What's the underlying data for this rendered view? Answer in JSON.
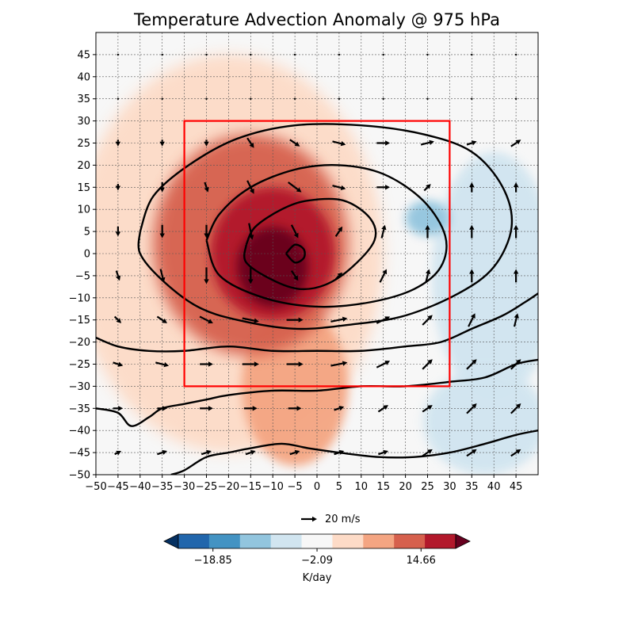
{
  "chart_data": {
    "type": "heatmap",
    "title": "Temperature Advection Anomaly @ 975 hPa",
    "xlabel": "",
    "ylabel": "",
    "xlim": [
      -50,
      50
    ],
    "ylim": [
      -50,
      50
    ],
    "x_ticks": [
      -50,
      -45,
      -40,
      -35,
      -30,
      -25,
      -20,
      -15,
      -10,
      -5,
      0,
      5,
      10,
      15,
      20,
      25,
      30,
      35,
      40,
      45
    ],
    "y_ticks": [
      -50,
      -45,
      -40,
      -35,
      -30,
      -25,
      -20,
      -15,
      -10,
      -5,
      0,
      5,
      10,
      15,
      20,
      25,
      30,
      35,
      40,
      45
    ],
    "grid": true,
    "colorbar": {
      "label": "K/day",
      "tick_values": [
        -18.85,
        -2.09,
        14.66
      ],
      "tick_labels": [
        "−18.85",
        "−2.09",
        "14.66"
      ],
      "level_colors": [
        "#053061",
        "#2166ac",
        "#4393c3",
        "#92c5de",
        "#d1e5f0",
        "#f7f7f7",
        "#fddbc7",
        "#f4a582",
        "#d6604d",
        "#b2182b",
        "#67001f"
      ],
      "extend": "both"
    },
    "wind_reference": {
      "value": 20,
      "label": "20 m/s"
    },
    "box": {
      "x": [
        -30,
        30
      ],
      "y": [
        -30,
        30
      ],
      "color": "#ff0000"
    },
    "shading_features": [
      {
        "name": "warm advection core",
        "x": -10,
        "y": -3,
        "rx": 8,
        "ry": 9,
        "level": 10
      },
      {
        "name": "warm advection ring",
        "x": -10,
        "y": 0,
        "rx": 14,
        "ry": 15,
        "level": 9
      },
      {
        "name": "warm region west",
        "x": -15,
        "y": 2,
        "rx": 22,
        "ry": 25,
        "level": 8
      },
      {
        "name": "warm tail south",
        "x": -5,
        "y": -30,
        "rx": 12,
        "ry": 18,
        "level": 7
      },
      {
        "name": "warm broad",
        "x": -20,
        "y": 0,
        "rx": 35,
        "ry": 45,
        "level": 6
      },
      {
        "name": "cold advection east",
        "x": 40,
        "y": -5,
        "rx": 14,
        "ry": 28,
        "level": 4
      },
      {
        "name": "cold advection southeast",
        "x": 38,
        "y": -38,
        "rx": 14,
        "ry": 12,
        "level": 4
      },
      {
        "name": "cold pocket",
        "x": 25,
        "y": 8,
        "rx": 5,
        "ry": 4,
        "level": 3
      }
    ],
    "contours": [
      {
        "name": "contour-1",
        "points": [
          [
            -7,
            0
          ],
          [
            -5,
            2
          ],
          [
            -3,
            1
          ],
          [
            -3,
            -1
          ],
          [
            -5,
            -2
          ],
          [
            -7,
            0
          ]
        ]
      },
      {
        "name": "contour-2",
        "points": [
          [
            -16,
            2
          ],
          [
            -14,
            6
          ],
          [
            -8,
            10
          ],
          [
            -2,
            12
          ],
          [
            6,
            12
          ],
          [
            12,
            8
          ],
          [
            13,
            3
          ],
          [
            8,
            -3
          ],
          [
            2,
            -7
          ],
          [
            -4,
            -8
          ],
          [
            -10,
            -6
          ],
          [
            -16,
            -2
          ],
          [
            -16,
            2
          ]
        ]
      },
      {
        "name": "contour-3",
        "points": [
          [
            -25,
            3
          ],
          [
            -22,
            9
          ],
          [
            -15,
            15
          ],
          [
            -5,
            19
          ],
          [
            5,
            20
          ],
          [
            15,
            18
          ],
          [
            24,
            12
          ],
          [
            29,
            4
          ],
          [
            28,
            -3
          ],
          [
            22,
            -8
          ],
          [
            12,
            -11
          ],
          [
            0,
            -12
          ],
          [
            -12,
            -10
          ],
          [
            -22,
            -5
          ],
          [
            -25,
            3
          ]
        ]
      },
      {
        "name": "contour-4",
        "points": [
          [
            -40,
            5
          ],
          [
            -37,
            13
          ],
          [
            -29,
            20
          ],
          [
            -18,
            26
          ],
          [
            -5,
            29
          ],
          [
            10,
            29
          ],
          [
            24,
            27
          ],
          [
            35,
            23
          ],
          [
            42,
            15
          ],
          [
            44,
            6
          ],
          [
            40,
            -3
          ],
          [
            32,
            -9
          ],
          [
            20,
            -14
          ],
          [
            8,
            -16
          ],
          [
            -5,
            -17
          ],
          [
            -18,
            -15
          ],
          [
            -27,
            -12
          ],
          [
            -35,
            -6
          ],
          [
            -40,
            0
          ],
          [
            -40,
            5
          ]
        ]
      },
      {
        "name": "contour-5",
        "points": [
          [
            -50,
            -19
          ],
          [
            -45,
            -21
          ],
          [
            -38,
            -22
          ],
          [
            -30,
            -22
          ],
          [
            -20,
            -21
          ],
          [
            -10,
            -22
          ],
          [
            0,
            -22
          ],
          [
            10,
            -22
          ],
          [
            20,
            -21
          ],
          [
            28,
            -20
          ],
          [
            35,
            -17
          ],
          [
            42,
            -14
          ],
          [
            47,
            -11
          ],
          [
            50,
            -9
          ]
        ]
      },
      {
        "name": "contour-6",
        "points": [
          [
            -50,
            -35
          ],
          [
            -45,
            -36
          ],
          [
            -42,
            -39
          ],
          [
            -38,
            -37
          ],
          [
            -35,
            -35
          ],
          [
            -30,
            -34
          ],
          [
            -25,
            -33
          ],
          [
            -20,
            -32
          ],
          [
            -10,
            -31
          ],
          [
            0,
            -31
          ],
          [
            10,
            -30
          ],
          [
            20,
            -30
          ],
          [
            30,
            -29
          ],
          [
            38,
            -28
          ],
          [
            45,
            -25
          ],
          [
            50,
            -24
          ]
        ]
      },
      {
        "name": "contour-7",
        "points": [
          [
            -33,
            -50
          ],
          [
            -30,
            -49
          ],
          [
            -25,
            -46
          ],
          [
            -20,
            -45
          ],
          [
            -15,
            -44
          ],
          [
            -8,
            -43
          ],
          [
            -2,
            -44
          ],
          [
            5,
            -45
          ],
          [
            14,
            -46
          ],
          [
            22,
            -46
          ],
          [
            30,
            -45
          ],
          [
            38,
            -43
          ],
          [
            45,
            -41
          ],
          [
            50,
            -40
          ]
        ]
      }
    ],
    "wind_field": [
      {
        "x": -45,
        "y": 25,
        "u": 0,
        "v": -2
      },
      {
        "x": -35,
        "y": 25,
        "u": 0,
        "v": -2
      },
      {
        "x": -25,
        "y": 25,
        "u": 0,
        "v": -2
      },
      {
        "x": -15,
        "y": 25,
        "u": 2,
        "v": -3
      },
      {
        "x": -5,
        "y": 25,
        "u": 3,
        "v": -2
      },
      {
        "x": 5,
        "y": 25,
        "u": 4,
        "v": -1
      },
      {
        "x": 15,
        "y": 25,
        "u": 4,
        "v": 0
      },
      {
        "x": 25,
        "y": 25,
        "u": 4,
        "v": 1
      },
      {
        "x": 35,
        "y": 25,
        "u": 3,
        "v": 1
      },
      {
        "x": 45,
        "y": 25,
        "u": 3,
        "v": 2
      },
      {
        "x": -45,
        "y": 15,
        "u": 0,
        "v": -2
      },
      {
        "x": -35,
        "y": 15,
        "u": 0,
        "v": -3
      },
      {
        "x": -25,
        "y": 15,
        "u": 1,
        "v": -3
      },
      {
        "x": -15,
        "y": 15,
        "u": 2,
        "v": -4
      },
      {
        "x": -5,
        "y": 15,
        "u": 4,
        "v": -3
      },
      {
        "x": 5,
        "y": 15,
        "u": 4,
        "v": -1
      },
      {
        "x": 15,
        "y": 15,
        "u": 4,
        "v": 0
      },
      {
        "x": 25,
        "y": 15,
        "u": 2,
        "v": 2
      },
      {
        "x": 35,
        "y": 15,
        "u": 0,
        "v": 3
      },
      {
        "x": 45,
        "y": 15,
        "u": 0,
        "v": 3
      },
      {
        "x": -45,
        "y": 5,
        "u": 0,
        "v": -3
      },
      {
        "x": -35,
        "y": 5,
        "u": 0,
        "v": -4
      },
      {
        "x": -25,
        "y": 5,
        "u": 0,
        "v": -4
      },
      {
        "x": -15,
        "y": 5,
        "u": 1,
        "v": -5
      },
      {
        "x": -5,
        "y": 5,
        "u": 2,
        "v": -4
      },
      {
        "x": 5,
        "y": 5,
        "u": 2,
        "v": 3
      },
      {
        "x": 15,
        "y": 5,
        "u": 1,
        "v": 4
      },
      {
        "x": 25,
        "y": 5,
        "u": 0,
        "v": 4
      },
      {
        "x": 35,
        "y": 5,
        "u": 0,
        "v": 4
      },
      {
        "x": 45,
        "y": 5,
        "u": 0,
        "v": 4
      },
      {
        "x": -45,
        "y": -5,
        "u": 1,
        "v": -3
      },
      {
        "x": -35,
        "y": -5,
        "u": 1,
        "v": -4
      },
      {
        "x": -25,
        "y": -5,
        "u": 0,
        "v": -5
      },
      {
        "x": -15,
        "y": -5,
        "u": 0,
        "v": -5
      },
      {
        "x": -5,
        "y": -5,
        "u": 2,
        "v": -3
      },
      {
        "x": 5,
        "y": -5,
        "u": 2,
        "v": 2
      },
      {
        "x": 15,
        "y": -5,
        "u": 2,
        "v": 4
      },
      {
        "x": 25,
        "y": -5,
        "u": 1,
        "v": 4
      },
      {
        "x": 35,
        "y": -5,
        "u": 0,
        "v": 4
      },
      {
        "x": 45,
        "y": -5,
        "u": 0,
        "v": 4
      },
      {
        "x": -45,
        "y": -15,
        "u": 2,
        "v": -2
      },
      {
        "x": -35,
        "y": -15,
        "u": 3,
        "v": -2
      },
      {
        "x": -25,
        "y": -15,
        "u": 4,
        "v": -2
      },
      {
        "x": -15,
        "y": -15,
        "u": 5,
        "v": -1
      },
      {
        "x": -5,
        "y": -15,
        "u": 5,
        "v": 0
      },
      {
        "x": 5,
        "y": -15,
        "u": 5,
        "v": 1
      },
      {
        "x": 15,
        "y": -15,
        "u": 4,
        "v": 2
      },
      {
        "x": 25,
        "y": -15,
        "u": 3,
        "v": 3
      },
      {
        "x": 35,
        "y": -15,
        "u": 2,
        "v": 4
      },
      {
        "x": 45,
        "y": -15,
        "u": 1,
        "v": 4
      },
      {
        "x": -45,
        "y": -25,
        "u": 3,
        "v": -1
      },
      {
        "x": -35,
        "y": -25,
        "u": 4,
        "v": -1
      },
      {
        "x": -25,
        "y": -25,
        "u": 4,
        "v": 0
      },
      {
        "x": -15,
        "y": -25,
        "u": 5,
        "v": 0
      },
      {
        "x": -5,
        "y": -25,
        "u": 5,
        "v": 0
      },
      {
        "x": 5,
        "y": -25,
        "u": 5,
        "v": 1
      },
      {
        "x": 15,
        "y": -25,
        "u": 4,
        "v": 2
      },
      {
        "x": 25,
        "y": -25,
        "u": 3,
        "v": 3
      },
      {
        "x": 35,
        "y": -25,
        "u": 3,
        "v": 3
      },
      {
        "x": 45,
        "y": -25,
        "u": 3,
        "v": 3
      },
      {
        "x": -45,
        "y": -35,
        "u": 3,
        "v": 0
      },
      {
        "x": -35,
        "y": -35,
        "u": 3,
        "v": 0
      },
      {
        "x": -25,
        "y": -35,
        "u": 4,
        "v": 0
      },
      {
        "x": -15,
        "y": -35,
        "u": 4,
        "v": 0
      },
      {
        "x": -5,
        "y": -35,
        "u": 4,
        "v": 0
      },
      {
        "x": 5,
        "y": -35,
        "u": 3,
        "v": 1
      },
      {
        "x": 15,
        "y": -35,
        "u": 3,
        "v": 2
      },
      {
        "x": 25,
        "y": -35,
        "u": 3,
        "v": 2
      },
      {
        "x": 35,
        "y": -35,
        "u": 3,
        "v": 3
      },
      {
        "x": 45,
        "y": -35,
        "u": 3,
        "v": 3
      },
      {
        "x": -45,
        "y": -45,
        "u": 2,
        "v": 1
      },
      {
        "x": -35,
        "y": -45,
        "u": 3,
        "v": 1
      },
      {
        "x": -25,
        "y": -45,
        "u": 3,
        "v": 1
      },
      {
        "x": -15,
        "y": -45,
        "u": 3,
        "v": 1
      },
      {
        "x": -5,
        "y": -45,
        "u": 3,
        "v": 1
      },
      {
        "x": 5,
        "y": -45,
        "u": 3,
        "v": 1
      },
      {
        "x": 15,
        "y": -45,
        "u": 3,
        "v": 1
      },
      {
        "x": 25,
        "y": -45,
        "u": 3,
        "v": 2
      },
      {
        "x": 35,
        "y": -45,
        "u": 3,
        "v": 2
      },
      {
        "x": 45,
        "y": -45,
        "u": 3,
        "v": 2
      }
    ],
    "calm_points": [
      {
        "x": -45,
        "y": 45
      },
      {
        "x": -35,
        "y": 45
      },
      {
        "x": -25,
        "y": 45
      },
      {
        "x": -15,
        "y": 45
      },
      {
        "x": -5,
        "y": 45
      },
      {
        "x": 5,
        "y": 45
      },
      {
        "x": 15,
        "y": 45
      },
      {
        "x": 25,
        "y": 45
      },
      {
        "x": 35,
        "y": 45
      },
      {
        "x": 45,
        "y": 45
      },
      {
        "x": -45,
        "y": 35
      },
      {
        "x": -35,
        "y": 35
      },
      {
        "x": -25,
        "y": 35
      },
      {
        "x": -15,
        "y": 35
      },
      {
        "x": -5,
        "y": 35
      },
      {
        "x": 5,
        "y": 35
      },
      {
        "x": 15,
        "y": 35
      },
      {
        "x": 25,
        "y": 35
      },
      {
        "x": 35,
        "y": 35
      },
      {
        "x": 45,
        "y": 35
      }
    ]
  }
}
